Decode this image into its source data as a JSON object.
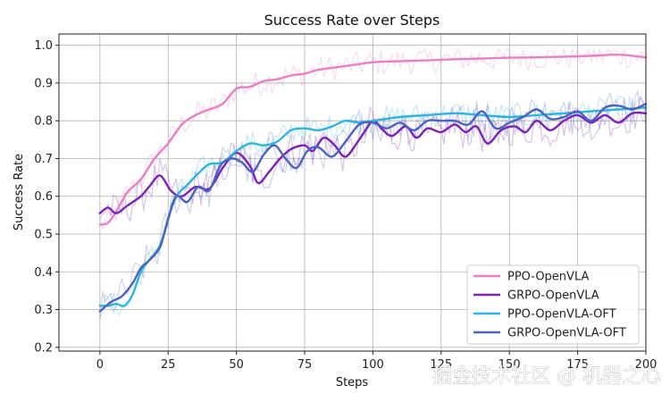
{
  "chart_data": {
    "type": "line",
    "title": "Success Rate over Steps",
    "xlabel": "Steps",
    "ylabel": "Success Rate",
    "xlim": [
      -15,
      200
    ],
    "ylim": [
      0.19,
      1.03
    ],
    "xticks": [
      0,
      25,
      50,
      75,
      100,
      125,
      150,
      175,
      200
    ],
    "yticks": [
      0.2,
      0.3,
      0.4,
      0.5,
      0.6,
      0.7,
      0.8,
      0.9,
      1.0
    ],
    "ytick_labels": [
      "0.2",
      "0.3",
      "0.4",
      "0.5",
      "0.6",
      "0.7",
      "0.8",
      "0.9",
      "1.0"
    ],
    "grid": true,
    "legend_position": "lower-right",
    "series": [
      {
        "name": "PPO-OpenVLA",
        "color": "#e97fc4",
        "x": [
          0,
          3,
          6,
          10,
          15,
          20,
          25,
          30,
          35,
          40,
          45,
          50,
          55,
          60,
          65,
          70,
          75,
          80,
          85,
          90,
          95,
          100,
          110,
          120,
          130,
          140,
          150,
          160,
          170,
          180,
          190,
          200
        ],
        "values": [
          0.525,
          0.53,
          0.56,
          0.61,
          0.645,
          0.7,
          0.74,
          0.79,
          0.815,
          0.83,
          0.845,
          0.885,
          0.89,
          0.905,
          0.91,
          0.92,
          0.925,
          0.935,
          0.94,
          0.945,
          0.95,
          0.955,
          0.958,
          0.96,
          0.963,
          0.965,
          0.967,
          0.968,
          0.97,
          0.972,
          0.975,
          0.968
        ]
      },
      {
        "name": "GRPO-OpenVLA",
        "color": "#7b22b8",
        "x": [
          0,
          3,
          6,
          10,
          15,
          18,
          22,
          26,
          30,
          35,
          40,
          45,
          50,
          55,
          58,
          62,
          66,
          70,
          75,
          78,
          82,
          86,
          90,
          95,
          100,
          103,
          107,
          112,
          116,
          120,
          125,
          130,
          134,
          138,
          142,
          147,
          152,
          156,
          160,
          165,
          170,
          175,
          180,
          185,
          190,
          195,
          200
        ],
        "values": [
          0.555,
          0.57,
          0.555,
          0.575,
          0.6,
          0.625,
          0.655,
          0.615,
          0.6,
          0.625,
          0.62,
          0.675,
          0.715,
          0.68,
          0.635,
          0.665,
          0.7,
          0.725,
          0.735,
          0.72,
          0.755,
          0.735,
          0.705,
          0.75,
          0.8,
          0.78,
          0.76,
          0.785,
          0.755,
          0.78,
          0.77,
          0.79,
          0.77,
          0.785,
          0.74,
          0.775,
          0.785,
          0.77,
          0.8,
          0.775,
          0.8,
          0.815,
          0.795,
          0.815,
          0.795,
          0.82,
          0.82
        ]
      },
      {
        "name": "PPO-OpenVLA-OFT",
        "color": "#2bb5e0",
        "x": [
          0,
          3,
          6,
          9,
          12,
          15,
          18,
          22,
          25,
          28,
          32,
          36,
          40,
          45,
          50,
          55,
          60,
          65,
          70,
          75,
          80,
          85,
          90,
          95,
          100,
          110,
          120,
          130,
          140,
          150,
          160,
          170,
          180,
          190,
          200
        ],
        "values": [
          0.31,
          0.31,
          0.315,
          0.31,
          0.34,
          0.4,
          0.43,
          0.47,
          0.54,
          0.6,
          0.63,
          0.66,
          0.685,
          0.69,
          0.72,
          0.74,
          0.735,
          0.745,
          0.775,
          0.78,
          0.775,
          0.785,
          0.8,
          0.795,
          0.8,
          0.81,
          0.815,
          0.82,
          0.815,
          0.81,
          0.815,
          0.82,
          0.825,
          0.83,
          0.835
        ]
      },
      {
        "name": "GRPO-OpenVLA-OFT",
        "color": "#4c62c0",
        "x": [
          0,
          4,
          8,
          12,
          15,
          18,
          22,
          25,
          28,
          32,
          36,
          40,
          44,
          48,
          52,
          56,
          60,
          64,
          68,
          72,
          76,
          80,
          85,
          90,
          95,
          100,
          105,
          110,
          115,
          120,
          125,
          130,
          135,
          140,
          145,
          150,
          155,
          160,
          165,
          170,
          175,
          180,
          185,
          190,
          195,
          200
        ],
        "values": [
          0.295,
          0.32,
          0.335,
          0.37,
          0.41,
          0.43,
          0.465,
          0.54,
          0.6,
          0.585,
          0.625,
          0.615,
          0.68,
          0.7,
          0.69,
          0.665,
          0.71,
          0.735,
          0.7,
          0.675,
          0.72,
          0.73,
          0.705,
          0.745,
          0.79,
          0.795,
          0.78,
          0.795,
          0.775,
          0.8,
          0.8,
          0.8,
          0.79,
          0.825,
          0.78,
          0.795,
          0.81,
          0.83,
          0.805,
          0.81,
          0.825,
          0.8,
          0.835,
          0.84,
          0.83,
          0.845
        ]
      }
    ]
  },
  "watermark": "掘金技术社区 @ 机器之心"
}
